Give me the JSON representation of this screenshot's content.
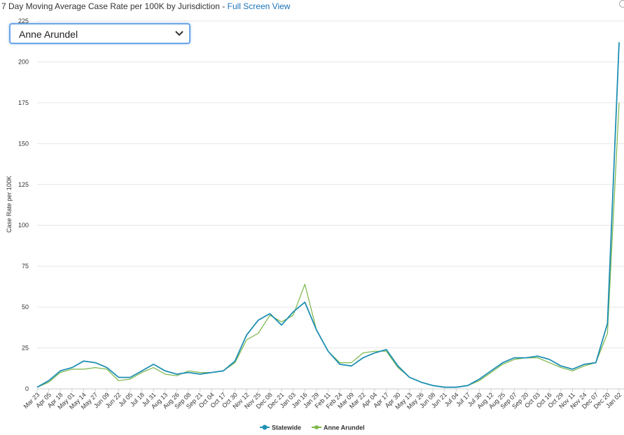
{
  "header": {
    "title": "7 Day Moving Average Case Rate per 100K by Jurisdiction",
    "separator": " - ",
    "link_label": "Full Screen View"
  },
  "jurisdiction_select": {
    "selected": "Anne Arundel",
    "icon": "chevron-down-icon"
  },
  "colors": {
    "statewide": "#1f8fb3",
    "anne_arundel": "#7ab648",
    "grid": "#e6e6e6",
    "link": "#1a73b8"
  },
  "chart_data": {
    "type": "line",
    "title": "7 Day Moving Average Case Rate per 100K by Jurisdiction",
    "xlabel": "",
    "ylabel": "Case Rate per 100K",
    "ylim": [
      0,
      225
    ],
    "yticks": [
      0,
      25,
      50,
      75,
      100,
      125,
      150,
      175,
      200,
      225
    ],
    "grid": true,
    "legend": "bottom",
    "x": [
      "Mar 23",
      "Apr 05",
      "Apr 18",
      "May 01",
      "May 14",
      "May 27",
      "Jun 09",
      "Jun 22",
      "Jul 05",
      "Jul 18",
      "Jul 31",
      "Aug 13",
      "Aug 26",
      "Sep 08",
      "Sep 21",
      "Oct 04",
      "Oct 17",
      "Oct 30",
      "Nov 12",
      "Nov 25",
      "Dec 08",
      "Dec 21",
      "Jan 03",
      "Jan 16",
      "Jan 29",
      "Feb 11",
      "Feb 24",
      "Mar 09",
      "Mar 22",
      "Apr 04",
      "Apr 17",
      "Apr 30",
      "May 13",
      "May 26",
      "Jun 08",
      "Jun 21",
      "Jul 04",
      "Jul 17",
      "Jul 30",
      "Aug 12",
      "Aug 25",
      "Sep 07",
      "Sep 20",
      "Oct 03",
      "Oct 16",
      "Oct 29",
      "Nov 11",
      "Nov 24",
      "Dec 07",
      "Dec 20",
      "Jan 02"
    ],
    "series": [
      {
        "name": "Statewide",
        "values": [
          1,
          5,
          11,
          13,
          17,
          16,
          13,
          7,
          7,
          11,
          15,
          11,
          9,
          10,
          9,
          10,
          11,
          17,
          33,
          42,
          46,
          39,
          47,
          53,
          36,
          23,
          15,
          14,
          19,
          22,
          24,
          14,
          7,
          4,
          2,
          1,
          1,
          2,
          6,
          11,
          16,
          19,
          19,
          20,
          18,
          14,
          12,
          15,
          16,
          40,
          212
        ]
      },
      {
        "name": "Anne Arundel",
        "values": [
          1,
          4,
          10,
          12,
          12,
          13,
          12,
          5,
          6,
          10,
          13,
          9,
          8,
          11,
          10,
          10,
          11,
          16,
          30,
          34,
          45,
          41,
          45,
          64,
          36,
          23,
          16,
          16,
          22,
          23,
          23,
          13,
          7,
          4,
          2,
          1,
          1,
          2,
          5,
          10,
          15,
          18,
          19,
          19,
          16,
          13,
          11,
          14,
          16,
          34,
          175
        ]
      }
    ]
  }
}
